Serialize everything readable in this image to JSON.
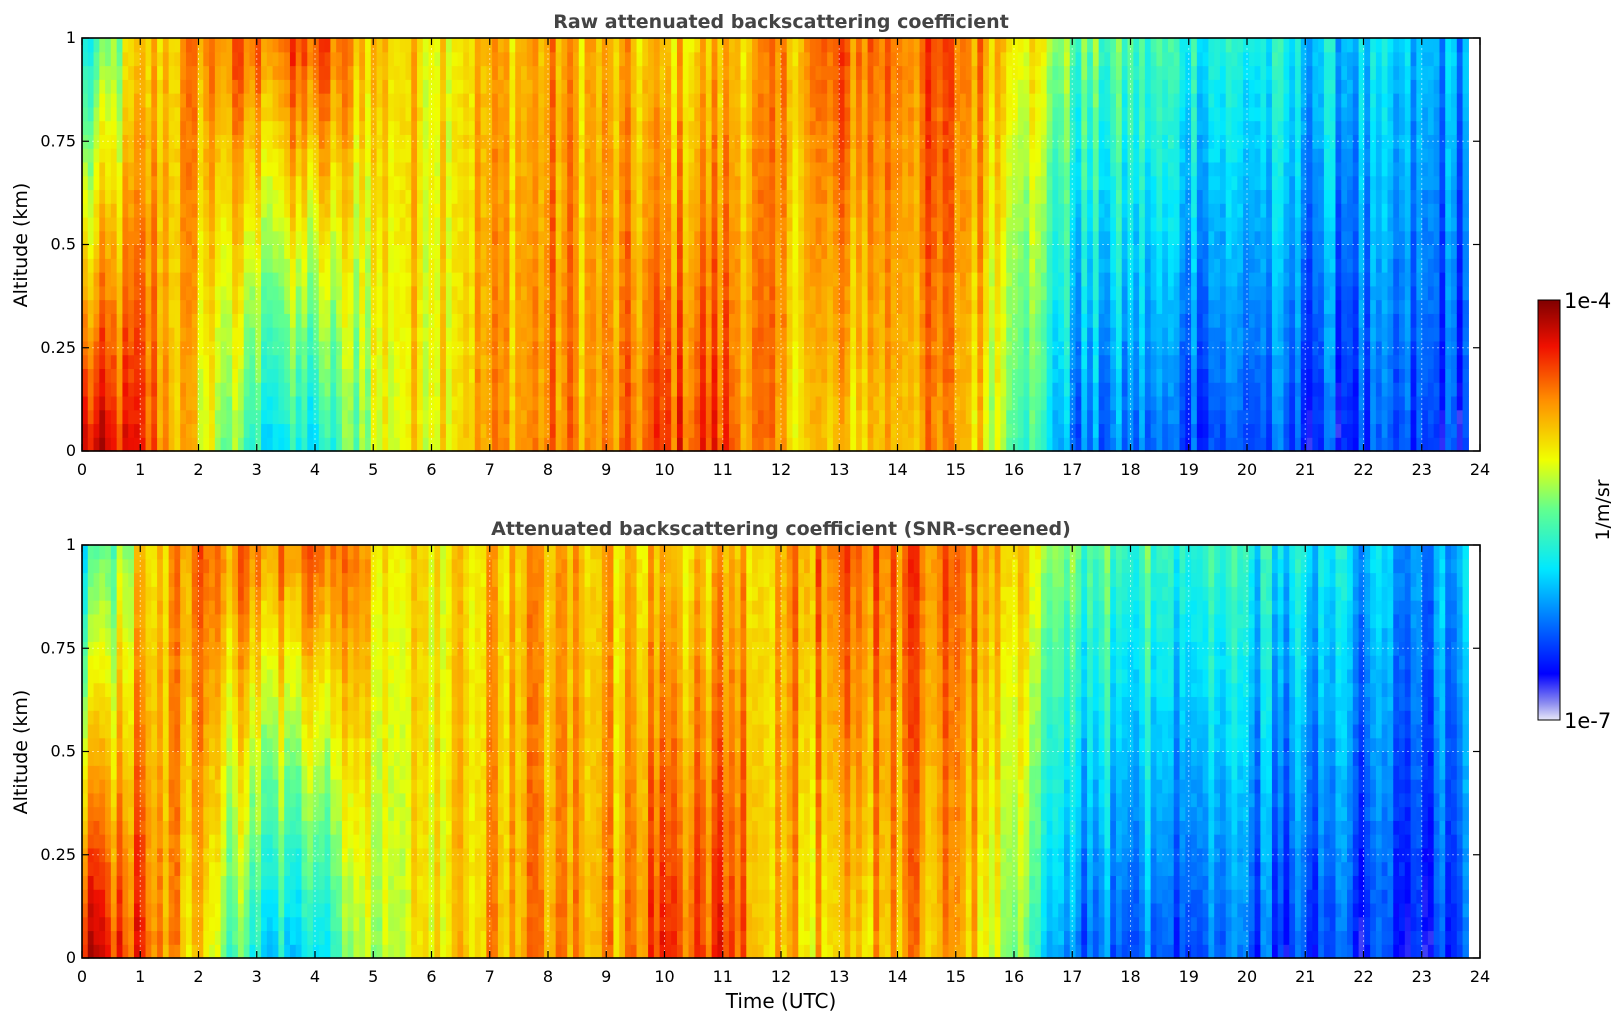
{
  "figure": {
    "colorbar": {
      "label": "1/m/sr",
      "max_label": "1e-4",
      "min_label": "1e-7",
      "scale": "log",
      "vmin": 1e-07,
      "vmax": 0.0001,
      "colormap": "jet"
    }
  },
  "chart_data": [
    {
      "type": "heatmap",
      "title": "Raw attenuated backscattering coefficient",
      "xlabel": "",
      "ylabel": "Altitude (km)",
      "xlim": [
        0,
        24
      ],
      "ylim": [
        0,
        1
      ],
      "x_ticks": [
        "0",
        "1",
        "2",
        "3",
        "4",
        "5",
        "6",
        "7",
        "8",
        "9",
        "10",
        "11",
        "12",
        "13",
        "14",
        "15",
        "16",
        "17",
        "18",
        "19",
        "20",
        "21",
        "22",
        "23",
        "24"
      ],
      "y_ticks": [
        "0",
        "0.25",
        "0.5",
        "0.75",
        "1"
      ],
      "grid": true,
      "data_end_hour": 23.8,
      "profile_summary": {
        "time_hours": [
          0,
          1,
          2,
          3,
          4,
          5,
          6,
          7,
          8,
          9,
          10,
          11,
          12,
          13,
          14,
          15,
          16,
          17,
          18,
          19,
          20,
          21,
          22,
          23
        ],
        "surface_log10": [
          -4.3,
          -4.5,
          -5.1,
          -5.8,
          -5.9,
          -5.2,
          -5.0,
          -4.8,
          -4.7,
          -4.8,
          -4.5,
          -4.5,
          -4.9,
          -5.0,
          -4.8,
          -4.8,
          -5.4,
          -6.3,
          -6.3,
          -6.4,
          -6.4,
          -6.5,
          -6.5,
          -6.5
        ],
        "top_log10": [
          -5.9,
          -5.0,
          -4.7,
          -4.6,
          -4.5,
          -4.9,
          -5.0,
          -4.9,
          -4.8,
          -4.9,
          -5.0,
          -4.9,
          -4.8,
          -4.6,
          -4.6,
          -4.6,
          -4.9,
          -5.5,
          -5.6,
          -5.7,
          -5.8,
          -5.9,
          -6.0,
          -6.1
        ]
      }
    },
    {
      "type": "heatmap",
      "title": "Attenuated backscattering coefficient (SNR-screened)",
      "xlabel": "Time (UTC)",
      "ylabel": "Altitude (km)",
      "xlim": [
        0,
        24
      ],
      "ylim": [
        0,
        1
      ],
      "x_ticks": [
        "0",
        "1",
        "2",
        "3",
        "4",
        "5",
        "6",
        "7",
        "8",
        "9",
        "10",
        "11",
        "12",
        "13",
        "14",
        "15",
        "16",
        "17",
        "18",
        "19",
        "20",
        "21",
        "22",
        "23",
        "24"
      ],
      "y_ticks": [
        "0",
        "0.25",
        "0.5",
        "0.75",
        "1"
      ],
      "grid": true,
      "data_end_hour": 23.8,
      "profile_summary": {
        "time_hours": [
          0,
          1,
          2,
          3,
          4,
          5,
          6,
          7,
          8,
          9,
          10,
          11,
          12,
          13,
          14,
          15,
          16,
          17,
          18,
          19,
          20,
          21,
          22,
          23
        ],
        "surface_log10": [
          -4.3,
          -4.5,
          -5.1,
          -5.8,
          -5.9,
          -5.2,
          -5.0,
          -4.8,
          -4.7,
          -4.8,
          -4.5,
          -4.5,
          -4.9,
          -5.0,
          -4.8,
          -4.8,
          -5.4,
          -6.3,
          -6.3,
          -6.4,
          -6.4,
          -6.5,
          -6.5,
          -6.5
        ],
        "top_log10": [
          -5.9,
          -5.0,
          -4.7,
          -4.6,
          -4.5,
          -4.9,
          -5.0,
          -4.9,
          -4.8,
          -4.9,
          -5.0,
          -4.9,
          -4.8,
          -4.6,
          -4.6,
          -4.6,
          -4.9,
          -5.5,
          -5.6,
          -5.7,
          -5.8,
          -5.9,
          -6.0,
          -6.1
        ]
      }
    }
  ]
}
